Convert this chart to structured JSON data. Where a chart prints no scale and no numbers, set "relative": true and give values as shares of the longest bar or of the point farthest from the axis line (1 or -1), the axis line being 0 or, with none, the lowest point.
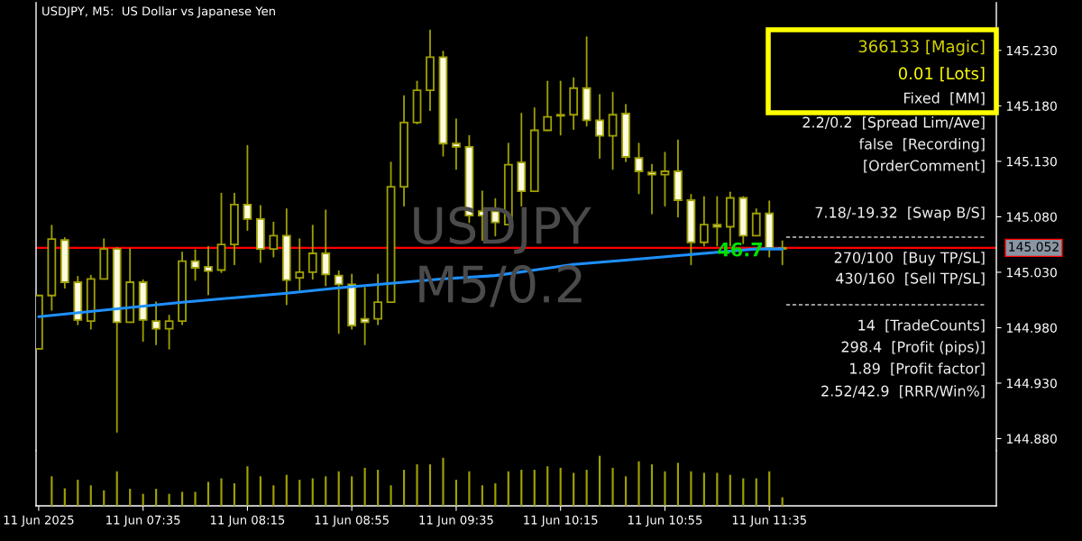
{
  "chart_data": [
    {
      "type": "candlestick",
      "title": "USDJPY, M5:  US Dollar vs Japanese Yen",
      "color": "#a0a000",
      "x": [
        "2025-06-11T06:55",
        "2025-06-11T07:00",
        "2025-06-11T07:05",
        "2025-06-11T07:10",
        "2025-06-11T07:15",
        "2025-06-11T07:20",
        "2025-06-11T07:25",
        "2025-06-11T07:30",
        "2025-06-11T07:35",
        "2025-06-11T07:40",
        "2025-06-11T07:45",
        "2025-06-11T07:50",
        "2025-06-11T07:55",
        "2025-06-11T08:00",
        "2025-06-11T08:05",
        "2025-06-11T08:10",
        "2025-06-11T08:15",
        "2025-06-11T08:20",
        "2025-06-11T08:25",
        "2025-06-11T08:30",
        "2025-06-11T08:35",
        "2025-06-11T08:40",
        "2025-06-11T08:45",
        "2025-06-11T08:50",
        "2025-06-11T08:55",
        "2025-06-11T09:00",
        "2025-06-11T09:05",
        "2025-06-11T09:10",
        "2025-06-11T09:15",
        "2025-06-11T09:20",
        "2025-06-11T09:25",
        "2025-06-11T09:30",
        "2025-06-11T09:35",
        "2025-06-11T09:40",
        "2025-06-11T09:45",
        "2025-06-11T09:50",
        "2025-06-11T09:55",
        "2025-06-11T10:00",
        "2025-06-11T10:05",
        "2025-06-11T10:10",
        "2025-06-11T10:15",
        "2025-06-11T10:20",
        "2025-06-11T10:25",
        "2025-06-11T10:30",
        "2025-06-11T10:35",
        "2025-06-11T10:40",
        "2025-06-11T10:45",
        "2025-06-11T10:50",
        "2025-06-11T10:55",
        "2025-06-11T11:00",
        "2025-06-11T11:05",
        "2025-06-11T11:10",
        "2025-06-11T11:15",
        "2025-06-11T11:20",
        "2025-06-11T11:25",
        "2025-06-11T11:30",
        "2025-06-11T11:35",
        "2025-06-11T11:40"
      ],
      "ohlc": [
        [
          144.961,
          145.009,
          144.961,
          145.009
        ],
        [
          145.009,
          145.072,
          144.996,
          145.06
        ],
        [
          145.059,
          145.061,
          145.016,
          145.021
        ],
        [
          145.021,
          145.026,
          144.983,
          144.987
        ],
        [
          144.986,
          145.027,
          144.979,
          145.024
        ],
        [
          145.024,
          145.06,
          145.024,
          145.051
        ],
        [
          145.051,
          145.052,
          144.886,
          144.985
        ],
        [
          144.985,
          145.051,
          144.985,
          145.021
        ],
        [
          145.021,
          145.023,
          144.968,
          144.987
        ],
        [
          144.986,
          145.003,
          144.965,
          144.979
        ],
        [
          144.979,
          144.991,
          144.961,
          144.986
        ],
        [
          144.986,
          145.048,
          144.983,
          145.04
        ],
        [
          145.04,
          145.05,
          145.023,
          145.034
        ],
        [
          145.035,
          145.053,
          145.01,
          145.031
        ],
        [
          145.032,
          145.101,
          145.03,
          145.055
        ],
        [
          145.055,
          145.101,
          145.037,
          145.091
        ],
        [
          145.091,
          145.144,
          145.068,
          145.078
        ],
        [
          145.078,
          145.09,
          145.039,
          145.051
        ],
        [
          145.051,
          145.075,
          145.044,
          145.063
        ],
        [
          145.063,
          145.087,
          145.001,
          145.023
        ],
        [
          145.025,
          145.06,
          145.014,
          145.03
        ],
        [
          145.03,
          145.072,
          145.024,
          145.047
        ],
        [
          145.047,
          145.086,
          145.018,
          145.028
        ],
        [
          145.027,
          145.031,
          144.975,
          145.019
        ],
        [
          145.019,
          145.028,
          144.979,
          144.982
        ],
        [
          144.988,
          145.016,
          144.965,
          144.985
        ],
        [
          144.988,
          145.028,
          144.983,
          145.003
        ],
        [
          145.003,
          145.129,
          145.003,
          145.107
        ],
        [
          145.107,
          145.189,
          145.09,
          145.165
        ],
        [
          145.165,
          145.202,
          145.164,
          145.194
        ],
        [
          145.194,
          145.248,
          145.176,
          145.224
        ],
        [
          145.224,
          145.229,
          145.135,
          145.146
        ],
        [
          145.146,
          145.168,
          145.123,
          145.143
        ],
        [
          145.143,
          145.153,
          145.075,
          145.081
        ],
        [
          145.085,
          145.103,
          145.059,
          145.081
        ],
        [
          145.085,
          145.096,
          145.063,
          145.075
        ],
        [
          145.073,
          145.146,
          145.073,
          145.127
        ],
        [
          145.129,
          145.173,
          145.09,
          145.103
        ],
        [
          145.103,
          145.178,
          145.103,
          145.158
        ],
        [
          145.158,
          145.202,
          145.158,
          145.17
        ],
        [
          145.171,
          145.202,
          145.154,
          145.172
        ],
        [
          145.172,
          145.205,
          145.159,
          145.196
        ],
        [
          145.196,
          145.242,
          145.162,
          145.167
        ],
        [
          145.167,
          145.19,
          145.133,
          145.153
        ],
        [
          145.153,
          145.192,
          145.123,
          145.172
        ],
        [
          145.173,
          145.181,
          145.13,
          145.134
        ],
        [
          145.133,
          145.146,
          145.101,
          145.121
        ],
        [
          145.12,
          145.127,
          145.083,
          145.118
        ],
        [
          145.118,
          145.138,
          145.09,
          145.121
        ],
        [
          145.121,
          145.149,
          145.08,
          145.095
        ],
        [
          145.095,
          145.1,
          145.037,
          145.057
        ],
        [
          145.057,
          145.098,
          145.054,
          145.073
        ],
        [
          145.073,
          145.098,
          145.054,
          145.071
        ],
        [
          145.071,
          145.102,
          145.054,
          145.097
        ],
        [
          145.097,
          145.098,
          145.056,
          145.063
        ],
        [
          145.063,
          145.087,
          145.063,
          145.083
        ],
        [
          145.083,
          145.094,
          145.044,
          145.052
        ],
        [
          145.051,
          145.058,
          145.037,
          145.052
        ]
      ],
      "series": [
        {
          "type": "line",
          "color": "#1e90ff",
          "x": [
            "2025-06-11T06:55",
            "2025-06-11T07:25",
            "2025-06-11T07:50",
            "2025-06-11T08:30",
            "2025-06-11T08:50",
            "2025-06-11T09:10",
            "2025-06-11T09:30",
            "2025-06-11T09:50",
            "2025-06-11T10:05",
            "2025-06-11T10:20",
            "2025-06-11T10:40",
            "2025-06-11T11:00",
            "2025-06-11T11:15",
            "2025-06-11T11:30",
            "2025-06-11T11:40"
          ],
          "values": [
            144.99,
            144.997,
            145.003,
            145.011,
            145.016,
            145.02,
            145.024,
            145.027,
            145.032,
            145.037,
            145.041,
            145.045,
            145.048,
            145.051,
            145.051
          ]
        }
      ],
      "ref_lines": [
        {
          "axis": "y",
          "value": 145.052,
          "label": "145.052",
          "color": "#ff0000"
        }
      ],
      "xlim": [
        "2025-06-11T06:54",
        "2025-06-11T13:02"
      ],
      "ylim": [
        144.869,
        145.273
      ],
      "yticks": [
        {
          "value": 145.23,
          "label": "145.230"
        },
        {
          "value": 145.18,
          "label": "145.180"
        },
        {
          "value": 145.13,
          "label": "145.130"
        },
        {
          "value": 145.08,
          "label": "145.080"
        },
        {
          "value": 145.03,
          "label": "145.030"
        },
        {
          "value": 144.98,
          "label": "144.980"
        },
        {
          "value": 144.93,
          "label": "144.930"
        },
        {
          "value": 144.88,
          "label": "144.880"
        }
      ],
      "tick_labels": "y",
      "annotations": [
        "USDJPY",
        "M5/0.2",
        {
          "text": "46.7",
          "x": "2025-06-11T11:15",
          "y": 145.049
        },
        "366133 [Magic]",
        "0.01 [Lots]",
        "Fixed  [MM]",
        "2.2/0.2  [Spread Lim/Ave]",
        "false  [Recording]",
        "[OrderComment]",
        "7.18/-19.32  [Swap B/S]",
        "270/100  [Buy TP/SL]",
        "430/160  [Sell TP/SL]",
        "14  [TradeCounts]",
        "298.4  [Profit (pips)]",
        "1.89  [Profit factor]",
        "2.52/42.9  [RRR/Win%]"
      ]
    },
    {
      "type": "bar",
      "relative": true,
      "color": "#a0a000",
      "x": [
        "2025-06-11T07:00",
        "2025-06-11T07:05",
        "2025-06-11T07:10",
        "2025-06-11T07:15",
        "2025-06-11T07:20",
        "2025-06-11T07:25",
        "2025-06-11T07:30",
        "2025-06-11T07:35",
        "2025-06-11T07:40",
        "2025-06-11T07:45",
        "2025-06-11T07:50",
        "2025-06-11T07:55",
        "2025-06-11T08:00",
        "2025-06-11T08:05",
        "2025-06-11T08:10",
        "2025-06-11T08:15",
        "2025-06-11T08:20",
        "2025-06-11T08:25",
        "2025-06-11T08:30",
        "2025-06-11T08:35",
        "2025-06-11T08:40",
        "2025-06-11T08:45",
        "2025-06-11T08:50",
        "2025-06-11T08:55",
        "2025-06-11T09:00",
        "2025-06-11T09:05",
        "2025-06-11T09:10",
        "2025-06-11T09:15",
        "2025-06-11T09:20",
        "2025-06-11T09:25",
        "2025-06-11T09:30",
        "2025-06-11T09:35",
        "2025-06-11T09:40",
        "2025-06-11T09:45",
        "2025-06-11T09:50",
        "2025-06-11T09:55",
        "2025-06-11T10:00",
        "2025-06-11T10:05",
        "2025-06-11T10:10",
        "2025-06-11T10:15",
        "2025-06-11T10:20",
        "2025-06-11T10:25",
        "2025-06-11T10:30",
        "2025-06-11T10:35",
        "2025-06-11T10:40",
        "2025-06-11T10:45",
        "2025-06-11T10:50",
        "2025-06-11T10:55",
        "2025-06-11T11:00",
        "2025-06-11T11:05",
        "2025-06-11T11:10",
        "2025-06-11T11:15",
        "2025-06-11T11:20",
        "2025-06-11T11:25",
        "2025-06-11T11:30",
        "2025-06-11T11:35",
        "2025-06-11T11:40"
      ],
      "values": [
        0.59,
        0.35,
        0.52,
        0.41,
        0.31,
        0.69,
        0.34,
        0.24,
        0.34,
        0.24,
        0.28,
        0.28,
        0.48,
        0.55,
        0.45,
        0.79,
        0.59,
        0.41,
        0.62,
        0.52,
        0.55,
        0.59,
        0.69,
        0.59,
        0.76,
        0.72,
        0.41,
        0.72,
        0.83,
        0.83,
        0.96,
        0.52,
        0.69,
        0.41,
        0.45,
        0.69,
        0.72,
        0.72,
        0.79,
        0.76,
        0.66,
        0.72,
        1,
        0.76,
        0.59,
        0.89,
        0.83,
        0.69,
        0.86,
        0.69,
        0.66,
        0.66,
        0.62,
        0.55,
        0.55,
        0.69,
        0.17
      ],
      "xlim": [
        "2025-06-11T06:54",
        "2025-06-11T13:02"
      ],
      "xticks": [
        {
          "value": "2025-06-11T06:55",
          "label": "11 Jun 2025"
        },
        {
          "value": "2025-06-11T07:35",
          "label": "11 Jun 07:35"
        },
        {
          "value": "2025-06-11T08:15",
          "label": "11 Jun 08:15"
        },
        {
          "value": "2025-06-11T08:55",
          "label": "11 Jun 08:55"
        },
        {
          "value": "2025-06-11T09:35",
          "label": "11 Jun 09:35"
        },
        {
          "value": "2025-06-11T10:15",
          "label": "11 Jun 10:15"
        },
        {
          "value": "2025-06-11T10:55",
          "label": "11 Jun 10:55"
        },
        {
          "value": "2025-06-11T11:35",
          "label": "11 Jun 11:35"
        }
      ],
      "tick_labels": "x"
    }
  ]
}
